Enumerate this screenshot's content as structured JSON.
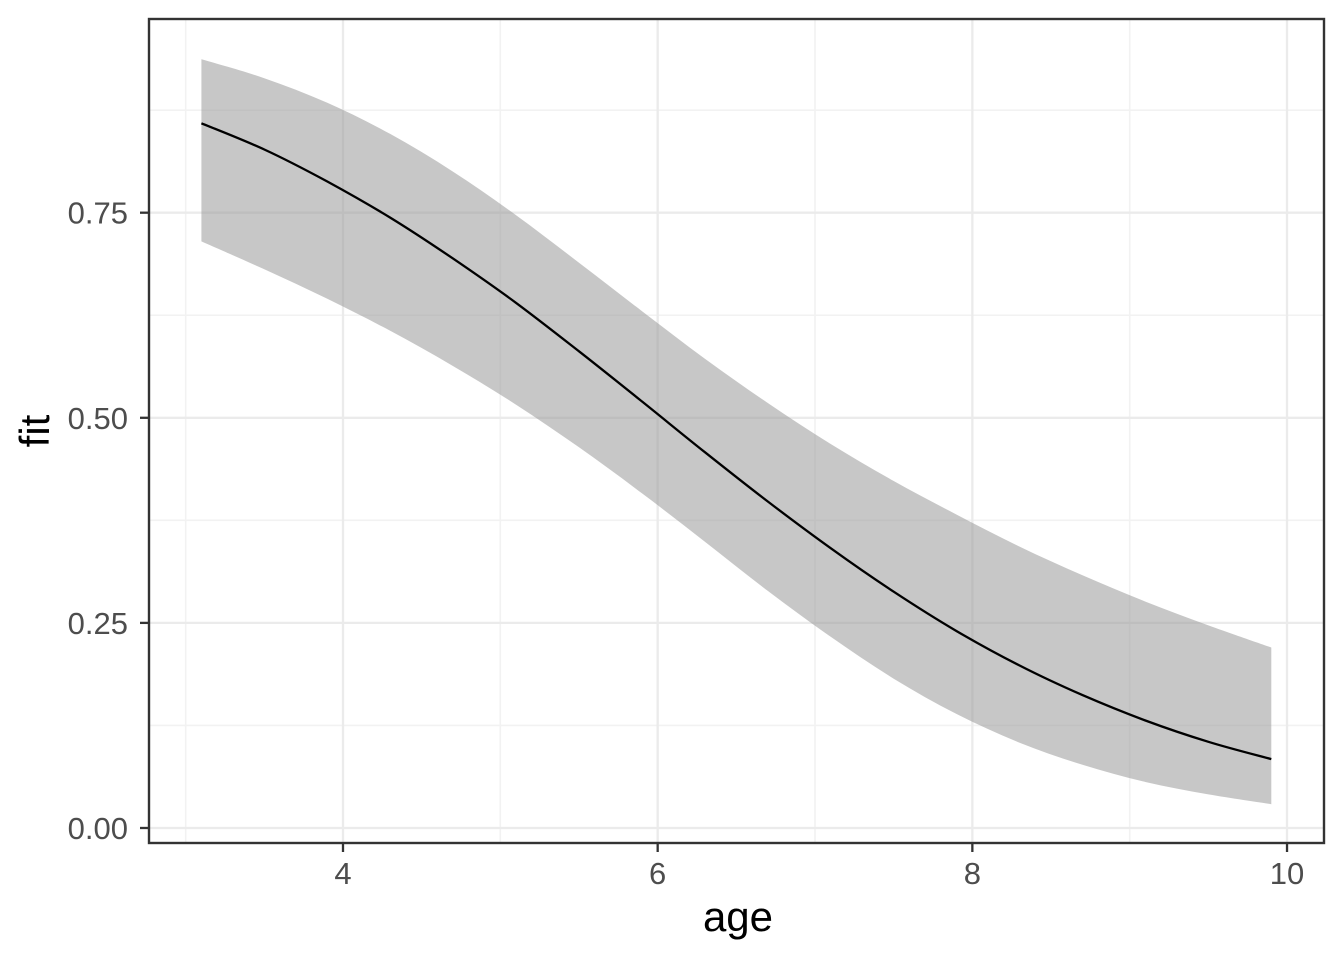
{
  "chart_data": {
    "type": "line",
    "title": "",
    "xlabel": "age",
    "ylabel": "fit",
    "grid": "on",
    "legend": "none",
    "panel_border": true,
    "xlim": [
      2.767,
      10.235
    ],
    "ylim": [
      -0.0183,
      0.9861
    ],
    "x_ticks": {
      "major": [
        {
          "value": 4,
          "label": "4"
        },
        {
          "value": 6,
          "label": "6"
        },
        {
          "value": 8,
          "label": "8"
        },
        {
          "value": 10,
          "label": "10"
        }
      ],
      "minor": [
        3,
        5,
        7,
        9
      ]
    },
    "y_ticks": {
      "major": [
        {
          "value": 0.0,
          "label": "0.00"
        },
        {
          "value": 0.25,
          "label": "0.25"
        },
        {
          "value": 0.5,
          "label": "0.50"
        },
        {
          "value": 0.75,
          "label": "0.75"
        }
      ],
      "minor": [
        0.125,
        0.375,
        0.625,
        0.875
      ]
    },
    "series": [
      {
        "name": "confidence-band",
        "type": "ribbon",
        "fill": "#999999",
        "fill_opacity": 0.55,
        "x": [
          3.1,
          3.5,
          3.9,
          4.3,
          4.7,
          5.1,
          5.5,
          5.9,
          6.3,
          6.7,
          7.1,
          7.5,
          7.9,
          8.3,
          8.7,
          9.1,
          9.5,
          9.9
        ],
        "lower": [
          0.715,
          0.681,
          0.645,
          0.606,
          0.563,
          0.516,
          0.464,
          0.408,
          0.349,
          0.289,
          0.233,
          0.182,
          0.139,
          0.104,
          0.077,
          0.056,
          0.041,
          0.029
        ],
        "upper": [
          0.937,
          0.914,
          0.884,
          0.846,
          0.8,
          0.747,
          0.689,
          0.63,
          0.572,
          0.518,
          0.468,
          0.423,
          0.382,
          0.343,
          0.308,
          0.276,
          0.247,
          0.22
        ]
      },
      {
        "name": "fit-line",
        "type": "line",
        "color": "#000000",
        "x": [
          3.1,
          3.5,
          3.9,
          4.3,
          4.7,
          5.1,
          5.5,
          5.9,
          6.3,
          6.7,
          7.1,
          7.5,
          7.9,
          8.3,
          8.7,
          9.1,
          9.5,
          9.9
        ],
        "y": [
          0.859,
          0.827,
          0.788,
          0.744,
          0.694,
          0.64,
          0.581,
          0.52,
          0.458,
          0.398,
          0.341,
          0.288,
          0.24,
          0.198,
          0.162,
          0.131,
          0.105,
          0.084
        ]
      }
    ],
    "colors": {
      "background": "#ffffff",
      "panel_background": "#ffffff",
      "panel_border": "#333333",
      "grid_major": "#ebebeb",
      "grid_minor": "#f2f2f2",
      "tick_mark": "#333333",
      "axis_text": "#4d4d4d",
      "axis_title": "#000000",
      "ribbon_rendered": "#c6c6c6",
      "line": "#000000"
    }
  }
}
